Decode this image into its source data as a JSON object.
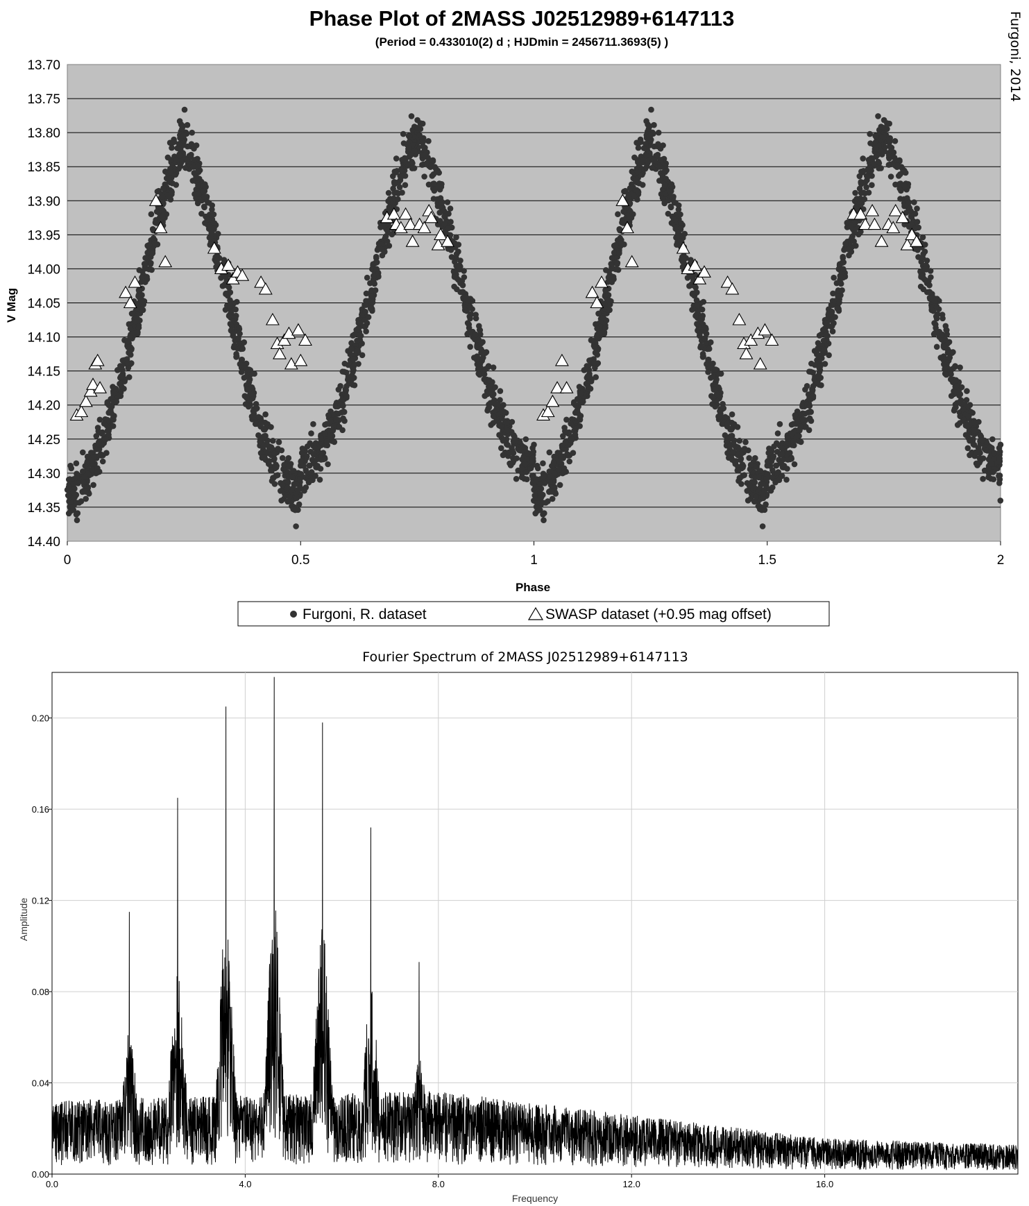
{
  "credit": "Furgoni, 2014",
  "chart_data": [
    {
      "type": "scatter",
      "title": "Phase Plot of 2MASS J02512989+6147113",
      "subtitle": "(Period = 0.433010(2) d ; HJDmin = 2456711.3693(5) )",
      "xlabel": "Phase",
      "ylabel": "V Mag",
      "xlim": [
        0,
        2
      ],
      "ylim": [
        13.7,
        14.4
      ],
      "y_inverted": true,
      "x_ticks": [
        "0",
        "0.5",
        "1",
        "1.5",
        "2"
      ],
      "y_ticks": [
        "13.70",
        "13.75",
        "13.80",
        "13.85",
        "13.90",
        "13.95",
        "14.00",
        "14.05",
        "14.10",
        "14.15",
        "14.20",
        "14.25",
        "14.30",
        "14.35",
        "14.40"
      ],
      "grid": true,
      "background_color": "#c0c0c0",
      "legend_position": "bottom",
      "legend": [
        "Furgoni, R. dataset",
        "SWASP dataset (+0.95 mag offset)"
      ],
      "series": [
        {
          "name": "Furgoni, R. dataset",
          "marker": "filled-circle",
          "color": "#333333",
          "model": {
            "description": "eclipsing binary light curve, repeated each 1.0 phase",
            "min1_phase": 0.0,
            "min1_mag": 14.33,
            "max1_phase": 0.25,
            "max1_mag": 13.815,
            "min2_phase": 0.5,
            "min2_mag": 14.29,
            "max2_phase": 0.75,
            "max2_mag": 13.805,
            "scatter_mag": 0.03
          }
        },
        {
          "name": "SWASP dataset (+0.95 mag offset)",
          "marker": "open-triangle",
          "color": "#ffffff",
          "points": [
            [
              0.02,
              14.215
            ],
            [
              0.03,
              14.21
            ],
            [
              0.04,
              14.195
            ],
            [
              0.05,
              14.18
            ],
            [
              0.055,
              14.17
            ],
            [
              0.06,
              14.14
            ],
            [
              0.065,
              14.135
            ],
            [
              0.07,
              14.175
            ],
            [
              0.125,
              14.035
            ],
            [
              0.135,
              14.05
            ],
            [
              0.145,
              14.02
            ],
            [
              0.19,
              13.9
            ],
            [
              0.2,
              13.94
            ],
            [
              0.21,
              13.99
            ],
            [
              0.315,
              13.97
            ],
            [
              0.33,
              14.0
            ],
            [
              0.345,
              13.995
            ],
            [
              0.355,
              14.015
            ],
            [
              0.365,
              14.005
            ],
            [
              0.375,
              14.01
            ],
            [
              0.415,
              14.02
            ],
            [
              0.425,
              14.03
            ],
            [
              0.44,
              14.075
            ],
            [
              0.45,
              14.11
            ],
            [
              0.455,
              14.125
            ],
            [
              0.465,
              14.105
            ],
            [
              0.475,
              14.095
            ],
            [
              0.48,
              14.14
            ],
            [
              0.495,
              14.09
            ],
            [
              0.5,
              14.135
            ],
            [
              0.51,
              14.105
            ],
            [
              0.685,
              13.925
            ],
            [
              0.7,
              13.92
            ],
            [
              0.705,
              13.935
            ],
            [
              0.715,
              13.94
            ],
            [
              0.725,
              13.92
            ],
            [
              0.735,
              13.935
            ],
            [
              0.74,
              13.96
            ],
            [
              0.755,
              13.935
            ],
            [
              0.765,
              13.94
            ],
            [
              0.775,
              13.915
            ],
            [
              0.78,
              13.925
            ],
            [
              0.795,
              13.965
            ],
            [
              0.8,
              13.95
            ],
            [
              0.815,
              13.96
            ],
            [
              1.02,
              14.215
            ],
            [
              1.03,
              14.21
            ],
            [
              1.04,
              14.195
            ],
            [
              1.05,
              14.175
            ],
            [
              1.06,
              14.135
            ],
            [
              1.07,
              14.175
            ],
            [
              1.125,
              14.035
            ],
            [
              1.135,
              14.05
            ],
            [
              1.145,
              14.02
            ],
            [
              1.19,
              13.9
            ],
            [
              1.2,
              13.94
            ],
            [
              1.21,
              13.99
            ],
            [
              1.32,
              13.97
            ],
            [
              1.33,
              14.0
            ],
            [
              1.345,
              13.995
            ],
            [
              1.355,
              14.015
            ],
            [
              1.365,
              14.005
            ],
            [
              1.415,
              14.02
            ],
            [
              1.425,
              14.03
            ],
            [
              1.44,
              14.075
            ],
            [
              1.45,
              14.11
            ],
            [
              1.455,
              14.125
            ],
            [
              1.465,
              14.105
            ],
            [
              1.48,
              14.095
            ],
            [
              1.485,
              14.14
            ],
            [
              1.495,
              14.09
            ],
            [
              1.51,
              14.105
            ],
            [
              1.685,
              13.92
            ],
            [
              1.7,
              13.92
            ],
            [
              1.71,
              13.935
            ],
            [
              1.725,
              13.915
            ],
            [
              1.73,
              13.935
            ],
            [
              1.745,
              13.96
            ],
            [
              1.76,
              13.935
            ],
            [
              1.77,
              13.94
            ],
            [
              1.775,
              13.915
            ],
            [
              1.79,
              13.925
            ],
            [
              1.8,
              13.965
            ],
            [
              1.81,
              13.95
            ],
            [
              1.82,
              13.96
            ]
          ]
        }
      ]
    },
    {
      "type": "line",
      "title": "Fourier Spectrum of 2MASS J02512989+6147113",
      "xlabel": "Frequency",
      "ylabel": "Amplitude",
      "xlim": [
        0.0,
        20.0
      ],
      "ylim": [
        0.0,
        0.22
      ],
      "x_ticks": [
        "0.0",
        "4.0",
        "8.0",
        "12.0",
        "16.0"
      ],
      "y_ticks": [
        "0.00",
        "0.04",
        "0.08",
        "0.12",
        "0.16",
        "0.20"
      ],
      "grid": true,
      "series": [
        {
          "name": "",
          "color": "#000000",
          "peaks": [
            {
              "frequency": 1.6,
              "amplitude": 0.115
            },
            {
              "frequency": 2.6,
              "amplitude": 0.165
            },
            {
              "frequency": 3.6,
              "amplitude": 0.205
            },
            {
              "frequency": 4.6,
              "amplitude": 0.218
            },
            {
              "frequency": 5.6,
              "amplitude": 0.198
            },
            {
              "frequency": 6.6,
              "amplitude": 0.152
            },
            {
              "frequency": 7.6,
              "amplitude": 0.093
            }
          ],
          "noise_floor": [
            [
              0.0,
              0.025
            ],
            [
              8.0,
              0.028
            ],
            [
              12.0,
              0.02
            ],
            [
              16.0,
              0.012
            ],
            [
              20.0,
              0.01
            ]
          ]
        }
      ]
    }
  ]
}
